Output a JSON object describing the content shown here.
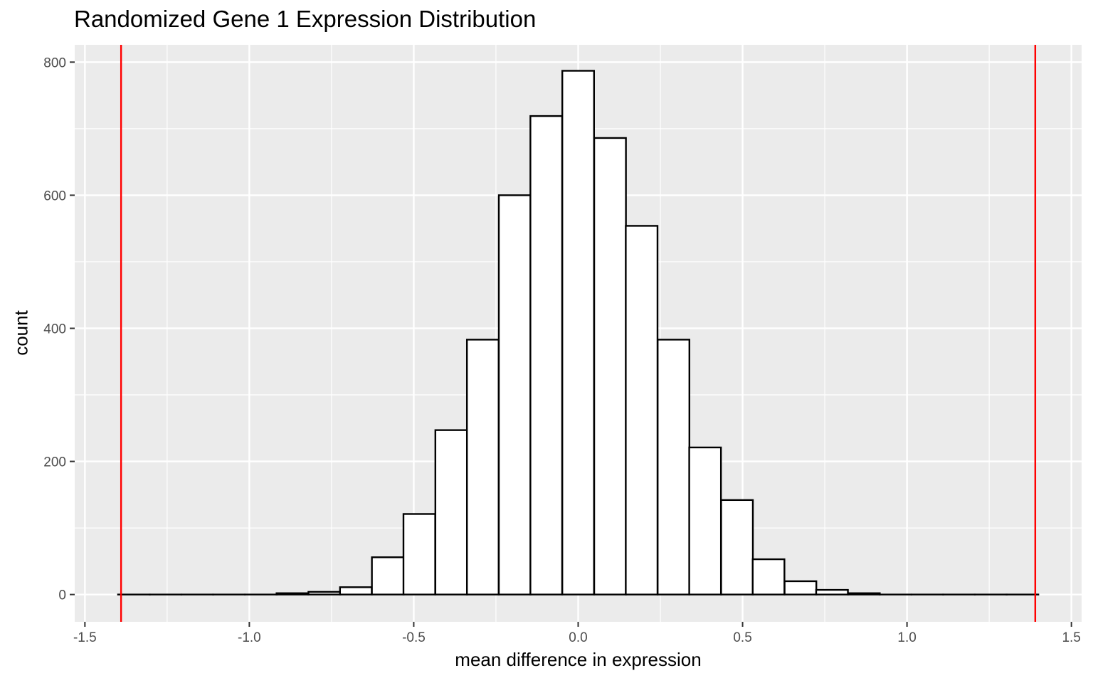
{
  "chart_data": {
    "type": "bar",
    "title": "Randomized Gene 1 Expression Distribution",
    "xlabel": "mean difference in expression",
    "ylabel": "count",
    "xlim": [
      -1.5,
      1.5
    ],
    "ylim": [
      0,
      800
    ],
    "x_ticks": [
      -1.5,
      -1.0,
      -0.5,
      0.0,
      0.5,
      1.0,
      1.5
    ],
    "x_tick_labels": [
      "-1.5",
      "-1.0",
      "-0.5",
      "0.0",
      "0.5",
      "1.0",
      "1.5"
    ],
    "y_ticks": [
      0,
      200,
      400,
      600,
      800
    ],
    "y_tick_labels": [
      "0",
      "200",
      "400",
      "600",
      "800"
    ],
    "bin_width": 0.0965,
    "bin_centers": [
      -1.351,
      -1.255,
      -1.158,
      -1.062,
      -0.965,
      -0.869,
      -0.772,
      -0.676,
      -0.579,
      -0.483,
      -0.386,
      -0.29,
      -0.193,
      -0.097,
      0.0,
      0.097,
      0.193,
      0.29,
      0.386,
      0.483,
      0.579,
      0.676,
      0.772,
      0.869,
      0.965,
      1.062,
      1.158,
      1.255,
      1.351
    ],
    "counts": [
      0,
      0,
      0,
      0,
      0,
      2,
      4,
      11,
      56,
      121,
      247,
      383,
      600,
      719,
      787,
      686,
      554,
      383,
      221,
      142,
      53,
      20,
      7,
      2,
      0,
      0,
      0,
      0,
      0
    ],
    "vlines": [
      -1.39,
      1.39
    ],
    "grid": true,
    "legend": "none",
    "colors": {
      "panel_background": "#EBEBEB",
      "grid_line": "#FFFFFF",
      "bar_fill": "#FFFFFF",
      "bar_outline": "#000000",
      "vline": "#FF0000",
      "axis_text": "#4D4D4D",
      "tick": "#333333"
    }
  }
}
